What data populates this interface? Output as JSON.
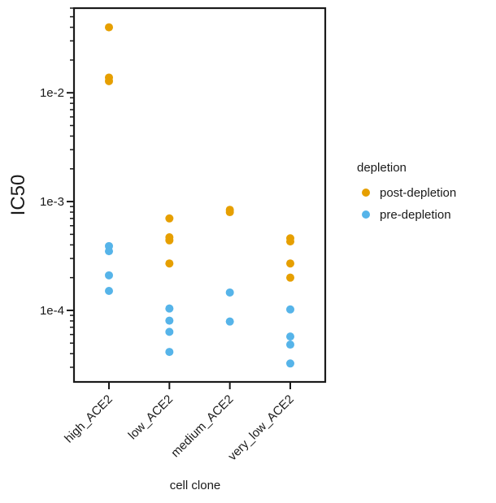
{
  "chart_data": {
    "type": "scatter",
    "title": "",
    "xlabel": "cell clone",
    "ylabel": "IC50",
    "yscale": "log",
    "ylim": [
      2.2e-05,
      0.06
    ],
    "categories": [
      "high_ACE2",
      "low_ACE2",
      "medium_ACE2",
      "very_low_ACE2"
    ],
    "yticks": [
      {
        "value": 0.0001,
        "label": "1e-4"
      },
      {
        "value": 0.001,
        "label": "1e-3"
      },
      {
        "value": 0.01,
        "label": "1e-2"
      }
    ],
    "grid": false,
    "legend": {
      "title": "depletion",
      "position": "right"
    },
    "series": [
      {
        "name": "post-depletion",
        "color": "#E69F00",
        "points": [
          {
            "x": "high_ACE2",
            "y": 0.04
          },
          {
            "x": "high_ACE2",
            "y": 0.0138
          },
          {
            "x": "high_ACE2",
            "y": 0.0128
          },
          {
            "x": "low_ACE2",
            "y": 0.0007
          },
          {
            "x": "low_ACE2",
            "y": 0.00047
          },
          {
            "x": "low_ACE2",
            "y": 0.00044
          },
          {
            "x": "low_ACE2",
            "y": 0.00027
          },
          {
            "x": "medium_ACE2",
            "y": 0.00084
          },
          {
            "x": "medium_ACE2",
            "y": 0.0008
          },
          {
            "x": "very_low_ACE2",
            "y": 0.00046
          },
          {
            "x": "very_low_ACE2",
            "y": 0.00043
          },
          {
            "x": "very_low_ACE2",
            "y": 0.00027
          },
          {
            "x": "very_low_ACE2",
            "y": 0.0002
          }
        ]
      },
      {
        "name": "pre-depletion",
        "color": "#56B4E9",
        "points": [
          {
            "x": "high_ACE2",
            "y": 0.00039
          },
          {
            "x": "high_ACE2",
            "y": 0.00035
          },
          {
            "x": "high_ACE2",
            "y": 0.00021
          },
          {
            "x": "high_ACE2",
            "y": 0.000151
          },
          {
            "x": "low_ACE2",
            "y": 0.000104
          },
          {
            "x": "low_ACE2",
            "y": 8.05e-05
          },
          {
            "x": "low_ACE2",
            "y": 6.35e-05
          },
          {
            "x": "low_ACE2",
            "y": 4.15e-05
          },
          {
            "x": "medium_ACE2",
            "y": 0.000146
          },
          {
            "x": "medium_ACE2",
            "y": 7.9e-05
          },
          {
            "x": "very_low_ACE2",
            "y": 0.000102
          },
          {
            "x": "very_low_ACE2",
            "y": 5.75e-05
          },
          {
            "x": "very_low_ACE2",
            "y": 4.85e-05
          },
          {
            "x": "very_low_ACE2",
            "y": 3.25e-05
          }
        ]
      }
    ]
  }
}
